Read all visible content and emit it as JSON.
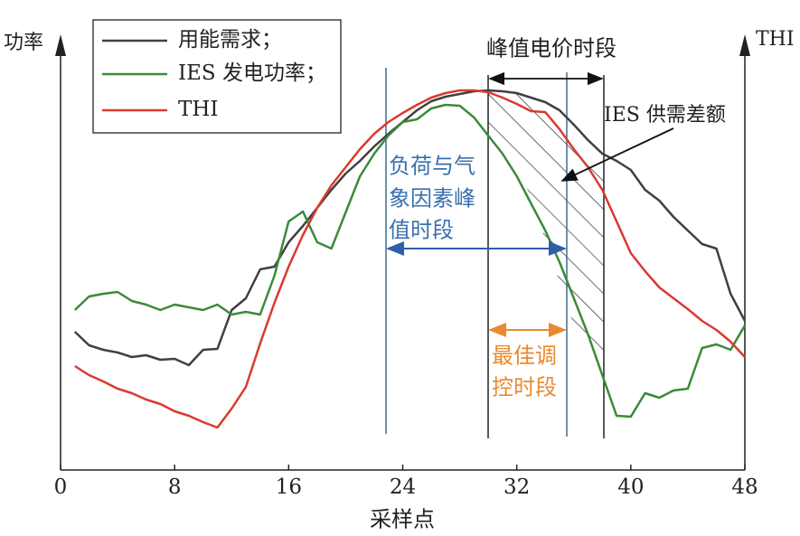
{
  "chart_data": {
    "type": "line",
    "x_label": "采样点",
    "y_label": "功率",
    "y2_label": "THI",
    "x": [
      1,
      2,
      3,
      4,
      5,
      6,
      7,
      8,
      9,
      10,
      11,
      12,
      13,
      14,
      15,
      16,
      17,
      18,
      19,
      20,
      21,
      22,
      23,
      24,
      25,
      26,
      27,
      28,
      29,
      30,
      31,
      32,
      33,
      34,
      35,
      36,
      37,
      38,
      39,
      40,
      41,
      42,
      43,
      44,
      45,
      46,
      47,
      48
    ],
    "xlim": [
      0,
      48
    ],
    "xticks": [
      0,
      8,
      16,
      24,
      32,
      40,
      48
    ],
    "ylim": [
      0,
      500
    ],
    "series": [
      {
        "name": "用能需求；",
        "color": "#404040",
        "values": [
          153,
          138,
          133,
          130,
          125,
          127,
          122,
          123,
          116,
          133,
          134,
          177,
          190,
          222,
          225,
          252,
          270,
          290,
          310,
          328,
          342,
          358,
          372,
          385,
          398,
          408,
          413,
          416,
          419,
          420,
          419,
          417,
          412,
          407,
          398,
          382,
          365,
          350,
          342,
          332,
          310,
          298,
          280,
          265,
          250,
          245,
          195,
          165
        ]
      },
      {
        "name": "IES 发电功率；",
        "color": "#3a8a3a",
        "values": [
          177,
          192,
          195,
          197,
          187,
          183,
          177,
          183,
          180,
          177,
          183,
          172,
          175,
          172,
          215,
          275,
          286,
          252,
          245,
          285,
          325,
          350,
          370,
          385,
          388,
          400,
          404,
          403,
          390,
          370,
          350,
          325,
          295,
          265,
          230,
          190,
          150,
          105,
          60,
          59,
          85,
          80,
          88,
          90,
          135,
          139,
          133,
          160
        ]
      },
      {
        "name": "THI",
        "color": "#d93a2f",
        "values": [
          115,
          105,
          98,
          90,
          85,
          78,
          73,
          65,
          60,
          53,
          47,
          68,
          92,
          140,
          185,
          225,
          260,
          290,
          315,
          335,
          355,
          372,
          385,
          395,
          404,
          412,
          417,
          420,
          420,
          418,
          412,
          405,
          397,
          396,
          377,
          355,
          335,
          310,
          275,
          240,
          220,
          202,
          190,
          178,
          165,
          155,
          142,
          125
        ]
      }
    ],
    "annotations": {
      "peak_price": "峰值电价时段",
      "gap": "IES 供需差额",
      "load_peak": [
        "负荷与气",
        "象因素峰",
        "值时段"
      ],
      "best": [
        "最佳调",
        "控时段"
      ]
    }
  }
}
